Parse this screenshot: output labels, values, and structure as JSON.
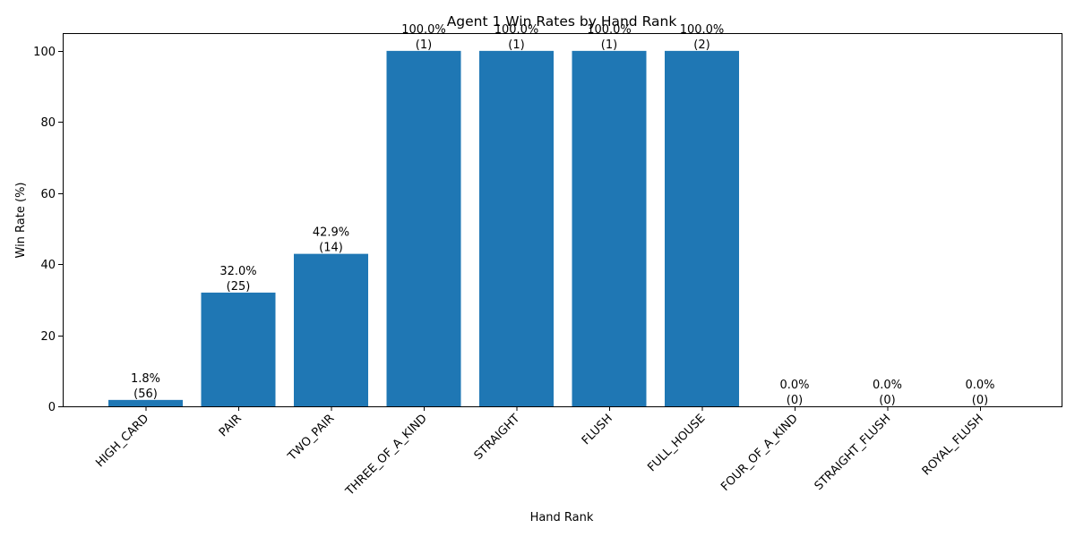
{
  "chart_data": {
    "type": "bar",
    "title": "Agent 1 Win Rates by Hand Rank",
    "xlabel": "Hand Rank",
    "ylabel": "Win Rate (%)",
    "ylim": [
      0,
      105
    ],
    "yticks": [
      0,
      20,
      40,
      60,
      80,
      100
    ],
    "grid": false,
    "bar_color": "#1f77b4",
    "categories": [
      "HIGH_CARD",
      "PAIR",
      "TWO_PAIR",
      "THREE_OF_A_KIND",
      "STRAIGHT",
      "FLUSH",
      "FULL_HOUSE",
      "FOUR_OF_A_KIND",
      "STRAIGHT_FLUSH",
      "ROYAL_FLUSH"
    ],
    "values": [
      1.8,
      32.0,
      42.9,
      100.0,
      100.0,
      100.0,
      100.0,
      0.0,
      0.0,
      0.0
    ],
    "counts": [
      56,
      25,
      14,
      1,
      1,
      1,
      2,
      0,
      0,
      0
    ],
    "value_labels": [
      "1.8%",
      "32.0%",
      "42.9%",
      "100.0%",
      "100.0%",
      "100.0%",
      "100.0%",
      "0.0%",
      "0.0%",
      "0.0%"
    ],
    "count_labels": [
      "(56)",
      "(25)",
      "(14)",
      "(1)",
      "(1)",
      "(1)",
      "(2)",
      "(0)",
      "(0)",
      "(0)"
    ]
  }
}
